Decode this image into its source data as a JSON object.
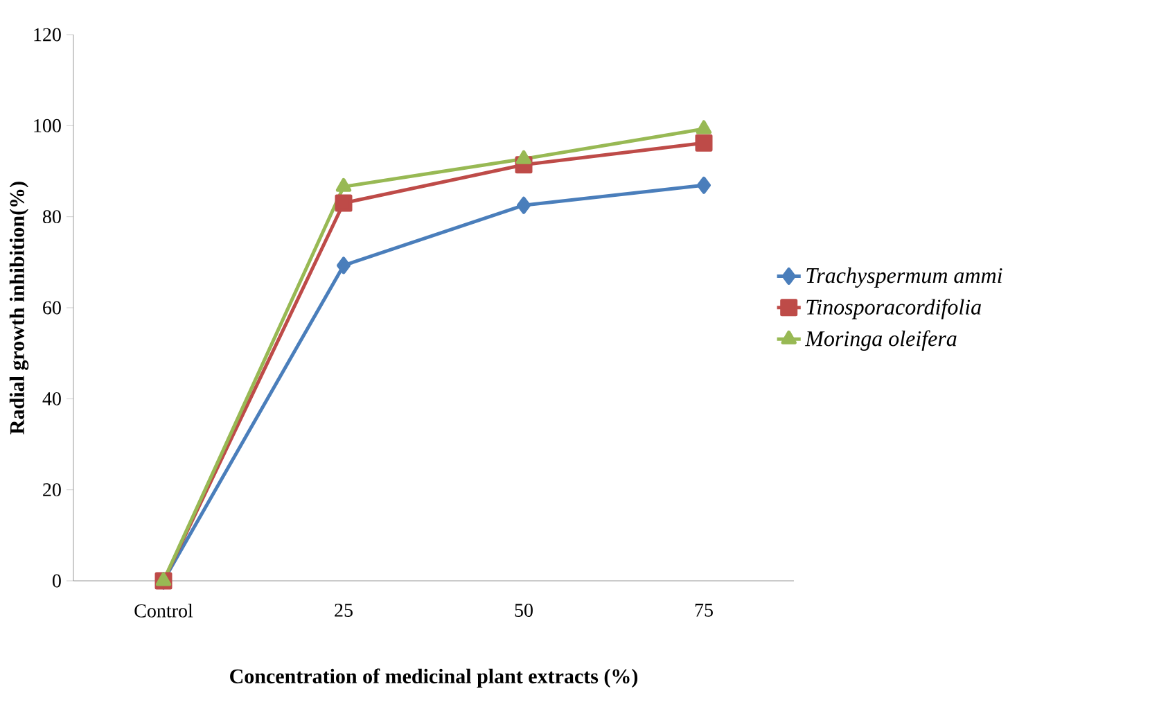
{
  "chart_data": {
    "type": "line",
    "xlabel": "Concentration of medicinal plant extracts (%)",
    "ylabel": "Radial growth inhibition(%)",
    "categories": [
      "Control",
      "25",
      "50",
      "75"
    ],
    "series": [
      {
        "name": "Trachyspermum ammi",
        "color": "#4a7ebb",
        "marker": "diamond",
        "values": [
          0,
          69.3,
          82.5,
          86.9
        ]
      },
      {
        "name": "Tinosporacordifolia",
        "color": "#be4b48",
        "marker": "square",
        "values": [
          0,
          83.0,
          91.4,
          96.2
        ]
      },
      {
        "name": "Moringa oleifera",
        "color": "#98b954",
        "marker": "triangle",
        "values": [
          0,
          86.6,
          92.7,
          99.3
        ]
      }
    ],
    "ylim": [
      0,
      120
    ],
    "yticks": [
      0,
      20,
      40,
      60,
      80,
      100,
      120
    ],
    "legend": "right",
    "grid": false,
    "line_style": "solid"
  }
}
